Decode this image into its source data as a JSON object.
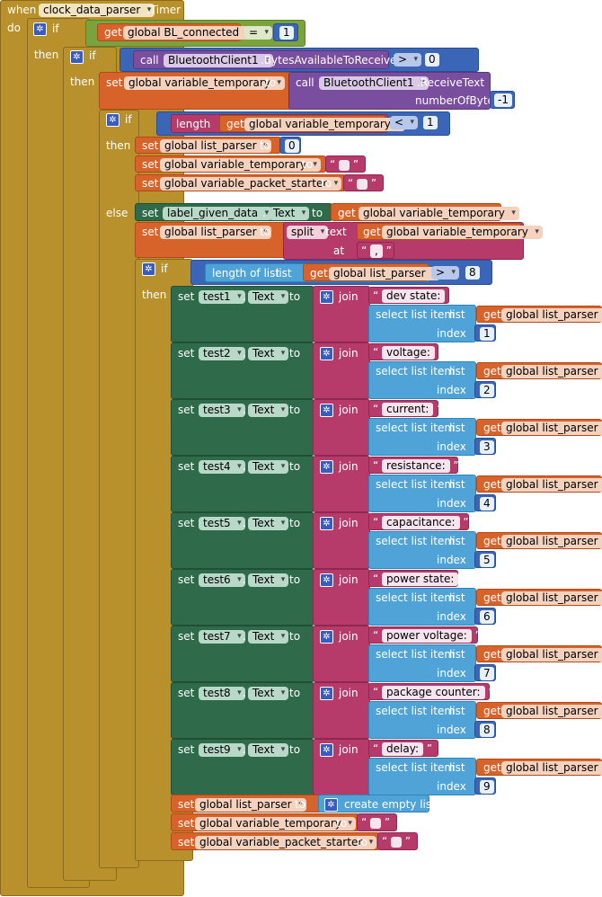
{
  "event": {
    "when": "when",
    "component": "clock_data_parser",
    "event_name": ".Timer",
    "do": "do"
  },
  "kw": {
    "if": "if",
    "then": "then",
    "else": "else",
    "set": "set",
    "get": "get",
    "to": "to",
    "call": "call",
    "join": "join",
    "index": "index",
    "at": "at",
    "text": "text",
    "dot": "."
  },
  "if1": {
    "var": "global BL_connected",
    "op": "=",
    "value": "1"
  },
  "if2": {
    "component": "BluetoothClient1",
    "prop": ".BytesAvailableToReceive",
    "op": ">",
    "value": "0"
  },
  "receive": {
    "var": "global variable_temporary",
    "component": "BluetoothClient1",
    "method": ".ReceiveText",
    "param": "numberOfBytes",
    "value": "-1"
  },
  "if3": {
    "fn": "length",
    "var": "global variable_temporary",
    "op": "<",
    "value": "1"
  },
  "then3": [
    {
      "var": "global list_parser",
      "value": "0"
    },
    {
      "var": "global variable_temporary"
    },
    {
      "var": "global variable_packet_starter"
    }
  ],
  "else3": {
    "label": "label_given_data",
    "prop": "Text",
    "get_var": "global variable_temporary",
    "set_var": "global list_parser",
    "split": "split",
    "split_var": "global variable_temporary",
    "sep": ","
  },
  "if4": {
    "fn": "length of list",
    "param": "list",
    "var": "global list_parser",
    "op": ">",
    "value": "8"
  },
  "tests": [
    {
      "comp": "test1",
      "prop": "Text",
      "label": "dev state: ",
      "index": "1"
    },
    {
      "comp": "test2",
      "prop": "Text",
      "label": "voltage: ",
      "index": "2"
    },
    {
      "comp": "test3",
      "prop": "Text",
      "label": "current: ",
      "index": "3"
    },
    {
      "comp": "test4",
      "prop": "Text",
      "label": "resistance: ",
      "index": "4"
    },
    {
      "comp": "test5",
      "prop": "Text",
      "label": "capacitance: ",
      "index": "5"
    },
    {
      "comp": "test6",
      "prop": "Text",
      "label": "power state: ",
      "index": "6"
    },
    {
      "comp": "test7",
      "prop": "Text",
      "label": "power voltage: ",
      "index": "7"
    },
    {
      "comp": "test8",
      "prop": "Text",
      "label": "package counter: ",
      "index": "8"
    },
    {
      "comp": "test9",
      "prop": "Text",
      "label": "delay: ",
      "index": "9"
    }
  ],
  "sel": {
    "label": "select list item",
    "list": "list",
    "var": "global list_parser"
  },
  "tail": [
    {
      "var": "global list_parser",
      "value": "create empty list"
    },
    {
      "var": "global variable_temporary"
    },
    {
      "var": "global variable_packet_starter"
    }
  ]
}
